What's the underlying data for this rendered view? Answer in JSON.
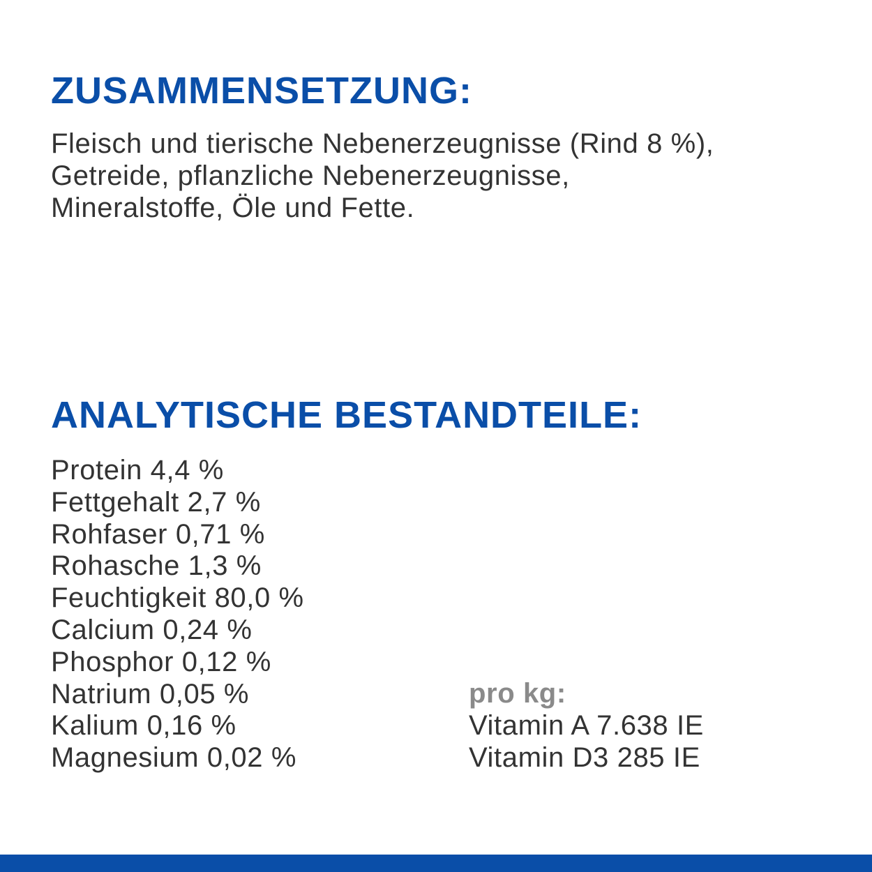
{
  "composition": {
    "heading": "ZUSAMMENSETZUNG:",
    "lines": [
      "Fleisch und tierische Nebenerzeugnisse (Rind 8 %),",
      "Getreide, pflanzliche Nebenerzeugnisse,",
      "Mineralstoffe, Öle und Fette."
    ]
  },
  "analysis": {
    "heading": "ANALYTISCHE BESTANDTEILE:",
    "items": [
      "Protein 4,4 %",
      "Fettgehalt 2,7 %",
      "Rohfaser 0,71 %",
      "Rohasche 1,3 %",
      "Feuchtigkeit 80,0 %",
      "Calcium 0,24 %",
      "Phosphor 0,12 %",
      "Natrium 0,05 %",
      "Kalium 0,16 %",
      "Magnesium 0,02 %"
    ],
    "per_kg": {
      "label": "pro kg:",
      "items": [
        "Vitamin A 7.638 IE",
        "Vitamin D3 285 IE"
      ]
    }
  },
  "colors": {
    "accent": "#0a4ea8",
    "text": "#333333",
    "muted": "#8a8a8a"
  }
}
